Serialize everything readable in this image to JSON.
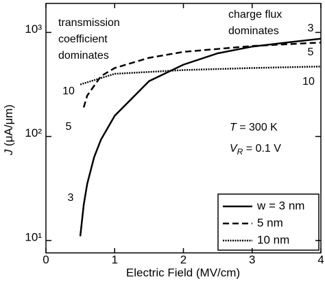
{
  "chart_data": {
    "type": "line",
    "x_label": "Electric Field (MV/cm)",
    "y_label": {
      "symbol": "J",
      "text": " (μA/μm)"
    },
    "xlim": [
      0,
      4
    ],
    "xticks": [
      0,
      1,
      2,
      3,
      4
    ],
    "ylim": [
      7.6,
      1900
    ],
    "yticks": [
      {
        "value": 10,
        "label": "10¹"
      },
      {
        "value": 100,
        "label": "10²"
      },
      {
        "value": 1000,
        "label": "10³"
      }
    ],
    "log_y": true,
    "series": [
      {
        "name": "w = 3 nm",
        "color": "#000000",
        "dash": "solid",
        "x": [
          0.5,
          0.55,
          0.6,
          0.7,
          0.8,
          1,
          1.5,
          2,
          2.5,
          3,
          3.5,
          4
        ],
        "values": [
          11,
          22,
          35,
          63,
          93,
          158,
          340,
          490,
          630,
          730,
          800,
          870
        ]
      },
      {
        "name": "5 nm",
        "color": "#000000",
        "dash": "dashed",
        "x": [
          0.55,
          0.6,
          0.8,
          1,
          1.5,
          2,
          3,
          4
        ],
        "values": [
          190,
          247,
          380,
          455,
          570,
          650,
          740,
          800
        ]
      },
      {
        "name": "10 nm",
        "color": "#000000",
        "dash": "dotted",
        "x": [
          0.5,
          1,
          2,
          3,
          4
        ],
        "values": [
          316,
          400,
          435,
          455,
          470
        ]
      }
    ],
    "curve_labels_left": [
      "10",
      "5",
      "3"
    ],
    "curve_labels_right": [
      "3",
      "5",
      "10"
    ],
    "annotations": [
      {
        "lines": [
          "transmission",
          "coefficient",
          "dominates"
        ]
      },
      {
        "lines": [
          "charge flux",
          "dominates"
        ]
      }
    ],
    "conditions": [
      {
        "symbol": "T",
        "subscript": "",
        "text": " = 300 K"
      },
      {
        "symbol": "V",
        "subscript": "R",
        "text": " = 0.1 V"
      }
    ],
    "legend": "lower right"
  }
}
